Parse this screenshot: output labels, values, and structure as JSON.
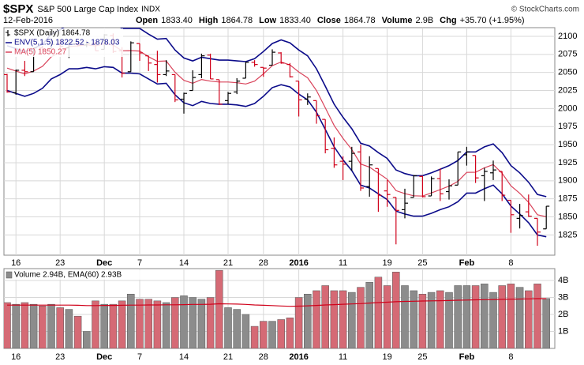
{
  "chart_data": {
    "type": "ohlc",
    "title": "$SPX",
    "subtitle": "S&P 500 Large Cap Index",
    "exchange": "INDX",
    "source": "© StockCharts.com",
    "date": "12-Feb-2016",
    "quote": [
      {
        "label": "Open",
        "value": "1833.40"
      },
      {
        "label": "High",
        "value": "1864.78"
      },
      {
        "label": "Low",
        "value": "1833.40"
      },
      {
        "label": "Close",
        "value": "1864.78"
      },
      {
        "label": "Volume",
        "value": "2.9B"
      },
      {
        "label": "Chg",
        "value": "+35.70 (+1.95%)"
      }
    ],
    "price_legend": "$SPX (Daily) 1864.78",
    "up_color": "#000000",
    "down_color": "#d0021b",
    "categories": [
      "2015-11-13",
      "2015-11-16",
      "2015-11-17",
      "2015-11-18",
      "2015-11-19",
      "2015-11-20",
      "2015-11-23",
      "2015-11-24",
      "2015-11-25",
      "2015-11-27",
      "2015-11-30",
      "2015-12-01",
      "2015-12-02",
      "2015-12-03",
      "2015-12-04",
      "2015-12-07",
      "2015-12-08",
      "2015-12-09",
      "2015-12-10",
      "2015-12-11",
      "2015-12-14",
      "2015-12-15",
      "2015-12-16",
      "2015-12-17",
      "2015-12-18",
      "2015-12-21",
      "2015-12-22",
      "2015-12-23",
      "2015-12-24",
      "2015-12-28",
      "2015-12-29",
      "2015-12-30",
      "2015-12-31",
      "2016-01-04",
      "2016-01-05",
      "2016-01-06",
      "2016-01-07",
      "2016-01-08",
      "2016-01-11",
      "2016-01-12",
      "2016-01-13",
      "2016-01-14",
      "2016-01-15",
      "2016-01-19",
      "2016-01-20",
      "2016-01-21",
      "2016-01-22",
      "2016-01-25",
      "2016-01-26",
      "2016-01-27",
      "2016-01-28",
      "2016-01-29",
      "2016-02-01",
      "2016-02-02",
      "2016-02-03",
      "2016-02-04",
      "2016-02-05",
      "2016-02-08",
      "2016-02-09",
      "2016-02-10",
      "2016-02-11",
      "2016-02-12"
    ],
    "ohlc": [
      [
        2047,
        2048,
        2022,
        2023
      ],
      [
        2022,
        2054,
        2019,
        2053
      ],
      [
        2053,
        2066,
        2045,
        2051
      ],
      [
        2051,
        2084,
        2051,
        2084
      ],
      [
        2084,
        2087,
        2078,
        2081
      ],
      [
        2083,
        2097,
        2083,
        2089
      ],
      [
        2089,
        2096,
        2080,
        2086
      ],
      [
        2084,
        2094,
        2070,
        2089
      ],
      [
        2089,
        2093,
        2086,
        2088
      ],
      [
        2088,
        2094,
        2085,
        2090
      ],
      [
        2090,
        2093,
        2080,
        2080
      ],
      [
        2082,
        2103,
        2082,
        2102
      ],
      [
        2101,
        2104,
        2077,
        2079
      ],
      [
        2080,
        2085,
        2043,
        2049
      ],
      [
        2051,
        2093,
        2051,
        2091
      ],
      [
        2090,
        2090,
        2066,
        2077
      ],
      [
        2073,
        2073,
        2052,
        2063
      ],
      [
        2061,
        2080,
        2036,
        2047
      ],
      [
        2047,
        2067,
        2045,
        2052
      ],
      [
        2047,
        2047,
        2009,
        2012
      ],
      [
        2013,
        2022,
        1993,
        2021
      ],
      [
        2025,
        2053,
        2025,
        2043
      ],
      [
        2047,
        2076,
        2042,
        2073
      ],
      [
        2074,
        2076,
        2041,
        2041
      ],
      [
        2040,
        2040,
        2005,
        2006
      ],
      [
        2011,
        2023,
        2006,
        2021
      ],
      [
        2023,
        2042,
        2020,
        2038
      ],
      [
        2042,
        2065,
        2042,
        2064
      ],
      [
        2064,
        2067,
        2058,
        2061
      ],
      [
        2057,
        2057,
        2044,
        2056
      ],
      [
        2060,
        2082,
        2060,
        2078
      ],
      [
        2077,
        2078,
        2062,
        2063
      ],
      [
        2061,
        2063,
        2043,
        2044
      ],
      [
        2038,
        2038,
        1989,
        2012
      ],
      [
        2013,
        2021,
        2005,
        2016
      ],
      [
        2011,
        2011,
        1979,
        1990
      ],
      [
        1985,
        1985,
        1938,
        1943
      ],
      [
        1945,
        1960,
        1918,
        1922
      ],
      [
        1927,
        1934,
        1901,
        1923
      ],
      [
        1927,
        1947,
        1914,
        1938
      ],
      [
        1940,
        1950,
        1886,
        1890
      ],
      [
        1892,
        1934,
        1878,
        1922
      ],
      [
        1917,
        1917,
        1857,
        1880
      ],
      [
        1886,
        1901,
        1864,
        1881
      ],
      [
        1877,
        1877,
        1812,
        1859
      ],
      [
        1860,
        1889,
        1848,
        1869
      ],
      [
        1877,
        1908,
        1877,
        1907
      ],
      [
        1906,
        1907,
        1877,
        1878
      ],
      [
        1879,
        1906,
        1879,
        1903
      ],
      [
        1903,
        1917,
        1872,
        1882
      ],
      [
        1885,
        1902,
        1874,
        1893
      ],
      [
        1894,
        1940,
        1894,
        1940
      ],
      [
        1936,
        1947,
        1921,
        1940
      ],
      [
        1935,
        1935,
        1897,
        1904
      ],
      [
        1907,
        1918,
        1872,
        1913
      ],
      [
        1911,
        1928,
        1901,
        1915
      ],
      [
        1913,
        1913,
        1872,
        1880
      ],
      [
        1873,
        1873,
        1828,
        1853
      ],
      [
        1848,
        1868,
        1834,
        1852
      ],
      [
        1857,
        1881,
        1850,
        1851
      ],
      [
        1848,
        1848,
        1810,
        1829
      ],
      [
        1833.4,
        1864.78,
        1833.4,
        1864.78
      ]
    ],
    "envelope": {
      "legend": "ENV(5,1.5) 1822.52 - 1878.03",
      "color": "#0b0b8a",
      "upper": [
        2087,
        2083,
        2079,
        2083,
        2089,
        2103,
        2109,
        2117,
        2118,
        2120,
        2118,
        2121,
        2119,
        2111,
        2111,
        2111,
        2103,
        2096,
        2097,
        2081,
        2070,
        2066,
        2071,
        2069,
        2067,
        2067,
        2066,
        2065,
        2069,
        2079,
        2090,
        2095,
        2091,
        2081,
        2073,
        2055,
        2031,
        2006,
        1988,
        1972,
        1952,
        1948,
        1939,
        1931,
        1915,
        1910,
        1907,
        1907,
        1911,
        1916,
        1921,
        1928,
        1940,
        1940,
        1947,
        1951,
        1939,
        1921,
        1911,
        1898,
        1881,
        1878.03
      ],
      "lower": [
        2025,
        2021,
        2017,
        2021,
        2028,
        2041,
        2047,
        2055,
        2055,
        2057,
        2055,
        2058,
        2057,
        2049,
        2049,
        2048,
        2041,
        2034,
        2035,
        2019,
        2008,
        2004,
        2010,
        2007,
        2006,
        2006,
        2005,
        2003,
        2007,
        2017,
        2029,
        2033,
        2030,
        2020,
        2012,
        1995,
        1971,
        1947,
        1929,
        1914,
        1894,
        1890,
        1882,
        1874,
        1858,
        1854,
        1851,
        1851,
        1855,
        1860,
        1864,
        1871,
        1883,
        1883,
        1889,
        1894,
        1882,
        1865,
        1854,
        1842,
        1825,
        1822.52
      ]
    },
    "ma": {
      "legend": "MA(5) 1850.27",
      "color": "#d9435a",
      "values": [
        2056,
        2052,
        2048,
        2052,
        2058.4,
        2071.6,
        2078.2,
        2085.8,
        2086.6,
        2088.4,
        2086.6,
        2089.8,
        2087.8,
        2080,
        2080.2,
        2079.6,
        2071.8,
        2065.4,
        2066,
        2050.2,
        2039,
        2035,
        2040.2,
        2038,
        2036.8,
        2036.8,
        2035.8,
        2034,
        2038,
        2048,
        2059.4,
        2064.4,
        2060.4,
        2050.6,
        2042.6,
        2025,
        2001,
        1976.6,
        1958.8,
        1943.2,
        1923.2,
        1919,
        1910.6,
        1902.2,
        1886.4,
        1882.2,
        1879.2,
        1878.8,
        1883.2,
        1887.8,
        1892.6,
        1899.2,
        1911.6,
        1911.8,
        1918,
        1922.4,
        1910.4,
        1893,
        1882.6,
        1870.2,
        1853,
        1850.27
      ]
    },
    "ylim": [
      1797,
      2112
    ],
    "yticks": [
      1825,
      1850,
      1875,
      1900,
      1925,
      1950,
      1975,
      2000,
      2025,
      2050,
      2075,
      2100
    ],
    "xticks": [
      {
        "value": "2015-11-16",
        "label": "16"
      },
      {
        "value": "2015-11-23",
        "label": "23"
      },
      {
        "value": "2015-12-01",
        "label": "Dec"
      },
      {
        "value": "2015-12-07",
        "label": "7"
      },
      {
        "value": "2015-12-14",
        "label": "14"
      },
      {
        "value": "2015-12-21",
        "label": "21"
      },
      {
        "value": "2015-12-28",
        "label": "28"
      },
      {
        "value": "2016-01-04",
        "label": "2016"
      },
      {
        "value": "2016-01-11",
        "label": "11"
      },
      {
        "value": "2016-01-19",
        "label": "19"
      },
      {
        "value": "2016-01-25",
        "label": "25"
      },
      {
        "value": "2016-02-01",
        "label": "Feb"
      },
      {
        "value": "2016-02-08",
        "label": "8"
      }
    ],
    "grid": true,
    "volume": {
      "legend": "Volume 2.94B, EMA(60) 2.93B",
      "up_color": "#8c8c8c",
      "down_color": "#d56a75",
      "ema_color": "#d0021b",
      "values": [
        2.7,
        2.6,
        2.7,
        2.6,
        2.5,
        2.6,
        2.4,
        2.3,
        1.9,
        1.0,
        2.8,
        2.6,
        2.6,
        2.8,
        3.2,
        2.9,
        2.9,
        2.8,
        2.7,
        3.0,
        3.1,
        3.0,
        2.9,
        3.0,
        4.6,
        2.4,
        2.3,
        2.0,
        1.3,
        1.6,
        1.6,
        1.7,
        1.8,
        3.0,
        3.2,
        3.4,
        3.7,
        3.4,
        3.4,
        3.3,
        3.6,
        3.9,
        4.2,
        3.7,
        4.5,
        3.7,
        3.4,
        3.2,
        3.3,
        3.4,
        3.3,
        3.7,
        3.7,
        3.7,
        3.8,
        3.3,
        3.7,
        3.8,
        3.6,
        3.4,
        3.8,
        2.94
      ],
      "ema": [
        2.55,
        2.55,
        2.55,
        2.55,
        2.55,
        2.55,
        2.55,
        2.55,
        2.54,
        2.52,
        2.52,
        2.53,
        2.53,
        2.54,
        2.55,
        2.55,
        2.56,
        2.56,
        2.57,
        2.57,
        2.58,
        2.59,
        2.59,
        2.6,
        2.63,
        2.62,
        2.61,
        2.59,
        2.56,
        2.54,
        2.52,
        2.5,
        2.48,
        2.49,
        2.51,
        2.53,
        2.56,
        2.58,
        2.6,
        2.62,
        2.64,
        2.67,
        2.7,
        2.72,
        2.75,
        2.77,
        2.78,
        2.79,
        2.8,
        2.81,
        2.82,
        2.84,
        2.85,
        2.86,
        2.87,
        2.88,
        2.89,
        2.9,
        2.91,
        2.92,
        2.93,
        2.93
      ],
      "ylim": [
        0,
        4.7
      ],
      "yticks": [
        {
          "value": 1,
          "label": "1B"
        },
        {
          "value": 2,
          "label": "2B"
        },
        {
          "value": 3,
          "label": "3B"
        },
        {
          "value": 4,
          "label": "4B"
        }
      ]
    }
  }
}
